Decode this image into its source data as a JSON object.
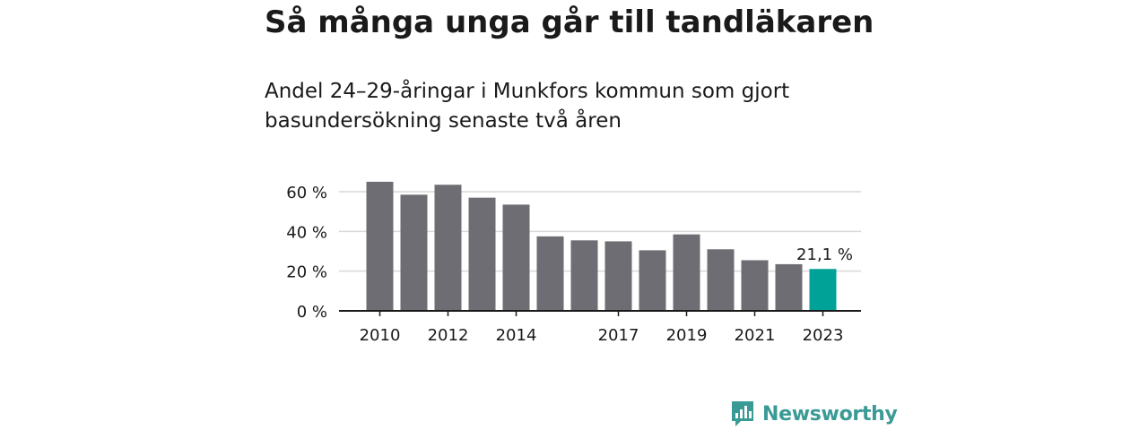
{
  "title": "Så många unga går till tandläkaren",
  "subtitle": "Andel 24–29-åringar i Munkfors kommun som gjort basundersökning senaste två åren",
  "brand": {
    "name": "Newsworthy",
    "logo_icon": "newsworthy-chart-logo-icon",
    "color": "#3a9a95"
  },
  "chart_data": {
    "type": "bar",
    "title": "",
    "xlabel": "",
    "ylabel": "",
    "categories": [
      "2010",
      "2011",
      "2012",
      "2013",
      "2014",
      "2015",
      "2016",
      "2017",
      "2018",
      "2019",
      "2020",
      "2021",
      "2022",
      "2023"
    ],
    "x_tick_labels": [
      "2010",
      "2012",
      "2014",
      "2017",
      "2019",
      "2021",
      "2023"
    ],
    "values": [
      65,
      58.5,
      63.5,
      57,
      53.5,
      37.5,
      35.5,
      35,
      30.5,
      38.5,
      31,
      25.5,
      23.5,
      21.1
    ],
    "ylim": [
      0,
      60
    ],
    "y_ticks": [
      {
        "value": 0,
        "label": "0 %"
      },
      {
        "value": 20,
        "label": "20 %"
      },
      {
        "value": 40,
        "label": "40 %"
      },
      {
        "value": 60,
        "label": "60 %"
      }
    ],
    "grid": true,
    "bar_color": "#6e6d73",
    "highlight_color": "#00a298",
    "highlight_index": 13,
    "highlight_label": "21,1 %"
  }
}
